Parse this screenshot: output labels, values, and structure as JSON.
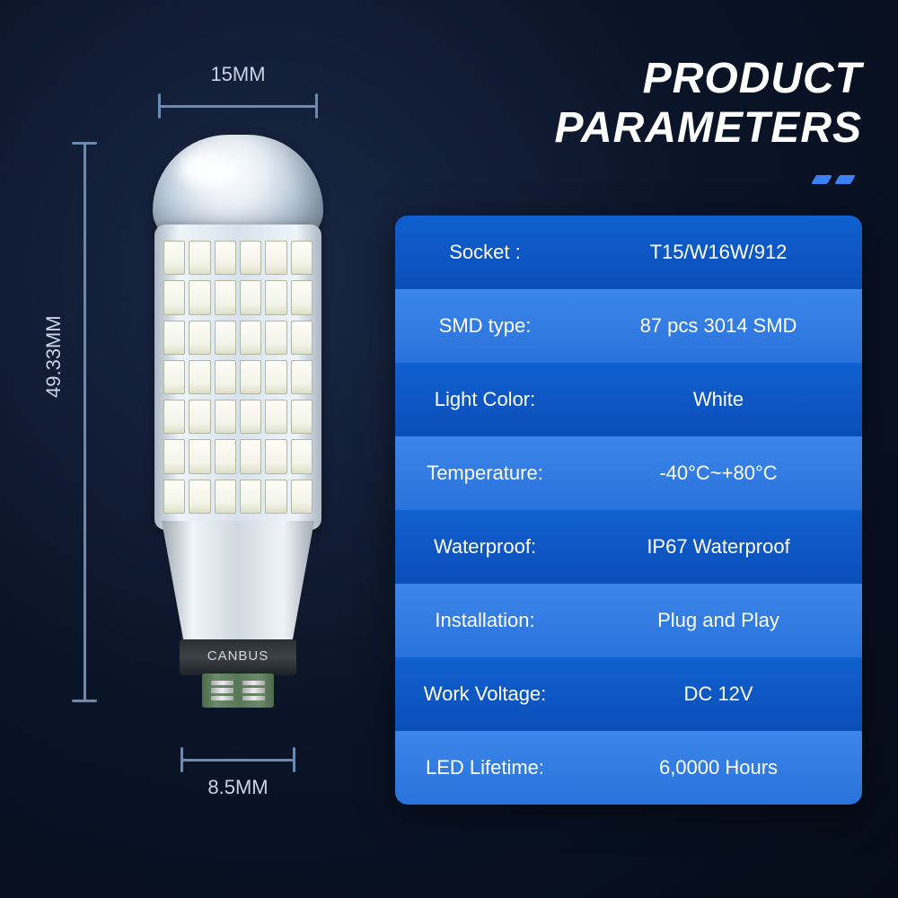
{
  "header": {
    "line1": "PRODUCT",
    "line2": "PARAMETERS"
  },
  "dimensions": {
    "top": "15MM",
    "left": "49.33MM",
    "bottom": "8.5MM"
  },
  "bulb": {
    "base_label": "CANBUS",
    "smd_rows": 7,
    "smd_cols": 6
  },
  "specs": [
    {
      "label": "Socket :",
      "value": "T15/W16W/912"
    },
    {
      "label": "SMD type:",
      "value": "87 pcs 3014 SMD"
    },
    {
      "label": "Light Color:",
      "value": "White"
    },
    {
      "label": "Temperature:",
      "value": "-40°C~+80°C"
    },
    {
      "label": "Waterproof:",
      "value": "IP67 Waterproof"
    },
    {
      "label": "Installation:",
      "value": "Plug and Play"
    },
    {
      "label": "Work Voltage:",
      "value": "DC 12V"
    },
    {
      "label": "LED Lifetime:",
      "value": "6,0000 Hours"
    }
  ],
  "colors": {
    "table_dark": "#0b4eb8",
    "table_light": "#2a72dc",
    "accent": "#3b82f6",
    "dim_line": "#6b8ab0",
    "text": "#ffffff"
  }
}
